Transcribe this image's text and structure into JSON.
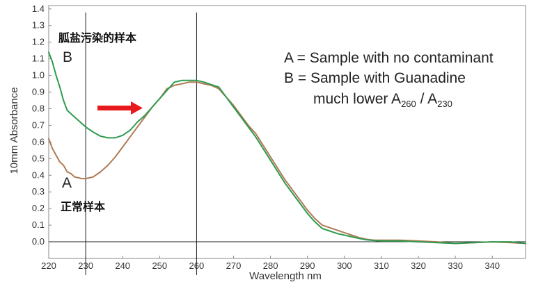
{
  "chart_data": {
    "type": "line",
    "xlabel": "Wavelength nm",
    "ylabel": "10mm Absorbance",
    "xlim": [
      220,
      349
    ],
    "ylim": [
      -0.1,
      1.42
    ],
    "x_ticks": [
      "220",
      "230",
      "240",
      "250",
      "260",
      "270",
      "280",
      "290",
      "300",
      "310",
      "320",
      "330",
      "340"
    ],
    "y_ticks": [
      "0.0",
      "0.1",
      "0.2",
      "0.3",
      "0.4",
      "0.5",
      "0.6",
      "0.7",
      "0.8",
      "0.9",
      "1.0",
      "1.1",
      "1.2",
      "1.3",
      "1.4"
    ],
    "vertical_lines": [
      230,
      260
    ],
    "horizontal_line": 0.0,
    "grid": false,
    "series": [
      {
        "name": "A",
        "color": "#b07a55",
        "points": [
          [
            220,
            0.62
          ],
          [
            221,
            0.56
          ],
          [
            222,
            0.52
          ],
          [
            223,
            0.48
          ],
          [
            224,
            0.46
          ],
          [
            225,
            0.42
          ],
          [
            226,
            0.41
          ],
          [
            227,
            0.39
          ],
          [
            228,
            0.385
          ],
          [
            229,
            0.38
          ],
          [
            230,
            0.38
          ],
          [
            232,
            0.39
          ],
          [
            234,
            0.42
          ],
          [
            236,
            0.46
          ],
          [
            238,
            0.51
          ],
          [
            240,
            0.57
          ],
          [
            242,
            0.63
          ],
          [
            244,
            0.69
          ],
          [
            246,
            0.75
          ],
          [
            248,
            0.81
          ],
          [
            250,
            0.86
          ],
          [
            252,
            0.92
          ],
          [
            254,
            0.94
          ],
          [
            256,
            0.95
          ],
          [
            258,
            0.96
          ],
          [
            260,
            0.96
          ],
          [
            262,
            0.95
          ],
          [
            264,
            0.94
          ],
          [
            266,
            0.92
          ],
          [
            268,
            0.87
          ],
          [
            270,
            0.82
          ],
          [
            272,
            0.76
          ],
          [
            274,
            0.7
          ],
          [
            276,
            0.65
          ],
          [
            278,
            0.58
          ],
          [
            280,
            0.51
          ],
          [
            282,
            0.44
          ],
          [
            284,
            0.37
          ],
          [
            286,
            0.31
          ],
          [
            288,
            0.25
          ],
          [
            290,
            0.19
          ],
          [
            292,
            0.14
          ],
          [
            294,
            0.1
          ],
          [
            296,
            0.085
          ],
          [
            298,
            0.07
          ],
          [
            300,
            0.055
          ],
          [
            302,
            0.04
          ],
          [
            304,
            0.025
          ],
          [
            306,
            0.015
          ],
          [
            308,
            0.01
          ],
          [
            310,
            0.01
          ],
          [
            315,
            0.01
          ],
          [
            320,
            0.005
          ],
          [
            325,
            0.0
          ],
          [
            330,
            -0.01
          ],
          [
            335,
            -0.005
          ],
          [
            340,
            0.0
          ],
          [
            345,
            -0.005
          ],
          [
            349,
            -0.01
          ]
        ]
      },
      {
        "name": "B",
        "color": "#2e9b4e",
        "points": [
          [
            220,
            1.14
          ],
          [
            221,
            1.08
          ],
          [
            222,
            1.0
          ],
          [
            223,
            0.93
          ],
          [
            224,
            0.85
          ],
          [
            225,
            0.79
          ],
          [
            226,
            0.77
          ],
          [
            228,
            0.73
          ],
          [
            230,
            0.69
          ],
          [
            232,
            0.66
          ],
          [
            234,
            0.635
          ],
          [
            236,
            0.625
          ],
          [
            238,
            0.625
          ],
          [
            240,
            0.64
          ],
          [
            242,
            0.67
          ],
          [
            244,
            0.72
          ],
          [
            246,
            0.76
          ],
          [
            248,
            0.81
          ],
          [
            250,
            0.86
          ],
          [
            252,
            0.91
          ],
          [
            254,
            0.96
          ],
          [
            256,
            0.97
          ],
          [
            258,
            0.97
          ],
          [
            260,
            0.97
          ],
          [
            262,
            0.96
          ],
          [
            264,
            0.945
          ],
          [
            266,
            0.93
          ],
          [
            268,
            0.87
          ],
          [
            270,
            0.81
          ],
          [
            272,
            0.75
          ],
          [
            274,
            0.69
          ],
          [
            276,
            0.63
          ],
          [
            278,
            0.56
          ],
          [
            280,
            0.49
          ],
          [
            282,
            0.42
          ],
          [
            284,
            0.35
          ],
          [
            286,
            0.29
          ],
          [
            288,
            0.23
          ],
          [
            290,
            0.17
          ],
          [
            292,
            0.12
          ],
          [
            294,
            0.08
          ],
          [
            296,
            0.065
          ],
          [
            298,
            0.05
          ],
          [
            300,
            0.04
          ],
          [
            302,
            0.03
          ],
          [
            304,
            0.02
          ],
          [
            306,
            0.012
          ],
          [
            308,
            0.008
          ],
          [
            310,
            0.005
          ],
          [
            315,
            0.005
          ],
          [
            320,
            0.0
          ],
          [
            325,
            -0.005
          ],
          [
            330,
            -0.01
          ],
          [
            335,
            -0.005
          ],
          [
            340,
            0.0
          ],
          [
            345,
            0.0
          ],
          [
            349,
            -0.01
          ]
        ]
      }
    ],
    "annotations": {
      "label_A": "A",
      "label_B": "B",
      "normal_sample": "正常样本",
      "contaminated_sample": "胍盐污染的样本",
      "legend_line_1": "A = Sample with no contaminant",
      "legend_line_2": "B = Sample with Guanadine",
      "legend_line_3_prefix": "much lower A",
      "legend_sub_1": "260",
      "legend_slash": " / A",
      "legend_sub_2": "230"
    },
    "arrow_color": "#e8191c"
  }
}
